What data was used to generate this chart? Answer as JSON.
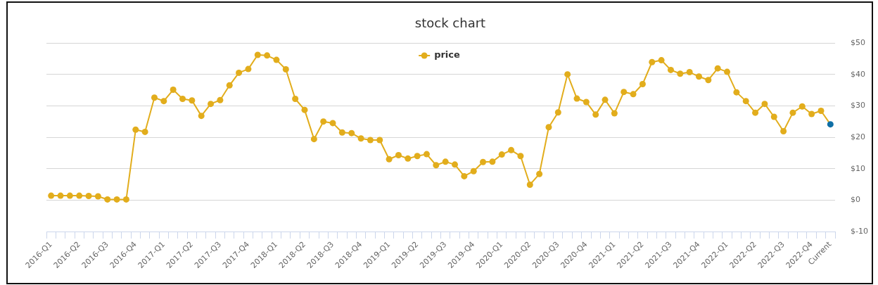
{
  "chart_data": {
    "type": "line",
    "title": "stock chart",
    "categories": [
      "2016-Q1",
      null,
      null,
      "2016-Q2",
      null,
      null,
      "2016-Q3",
      null,
      null,
      "2016-Q4",
      null,
      null,
      "2017-Q1",
      null,
      null,
      "2017-Q2",
      null,
      null,
      "2017-Q3",
      null,
      null,
      "2017-Q4",
      null,
      null,
      "2018-Q1",
      null,
      null,
      "2018-Q2",
      null,
      null,
      "2018-Q3",
      null,
      null,
      "2018-Q4",
      null,
      null,
      "2019-Q1",
      null,
      null,
      "2019-Q2",
      null,
      null,
      "2019-Q3",
      null,
      null,
      "2019-Q4",
      null,
      null,
      "2020-Q1",
      null,
      null,
      "2020-Q2",
      null,
      null,
      "2020-Q3",
      null,
      null,
      "2020-Q4",
      null,
      null,
      "2021-Q1",
      null,
      null,
      "2021-Q2",
      null,
      null,
      "2021-Q3",
      null,
      null,
      "2021-Q4",
      null,
      null,
      "2022-Q1",
      null,
      null,
      "2022-Q2",
      null,
      null,
      "2022-Q3",
      null,
      null,
      "2022-Q4",
      null,
      "Current"
    ],
    "series": [
      {
        "name": "price",
        "color": "#e2ad1c",
        "colors": [
          "#e2ad1c",
          "#e2ad1c",
          "#e2ad1c",
          "#e2ad1c",
          "#e2ad1c",
          "#e2ad1c",
          "#e2ad1c",
          "#e2ad1c",
          "#e2ad1c",
          "#e2ad1c",
          "#e2ad1c",
          "#e2ad1c",
          "#e2ad1c",
          "#e2ad1c",
          "#e2ad1c",
          "#e2ad1c",
          "#e2ad1c",
          "#e2ad1c",
          "#e2ad1c",
          "#e2ad1c",
          "#e2ad1c",
          "#e2ad1c",
          "#e2ad1c",
          "#e2ad1c",
          "#e2ad1c",
          "#e2ad1c",
          "#e2ad1c",
          "#e2ad1c",
          "#e2ad1c",
          "#e2ad1c",
          "#e2ad1c",
          "#e2ad1c",
          "#e2ad1c",
          "#e2ad1c",
          "#e2ad1c",
          "#e2ad1c",
          "#e2ad1c",
          "#e2ad1c",
          "#e2ad1c",
          "#e2ad1c",
          "#e2ad1c",
          "#e2ad1c",
          "#e2ad1c",
          "#e2ad1c",
          "#e2ad1c",
          "#e2ad1c",
          "#e2ad1c",
          "#e2ad1c",
          "#e2ad1c",
          "#e2ad1c",
          "#e2ad1c",
          "#e2ad1c",
          "#e2ad1c",
          "#e2ad1c",
          "#e2ad1c",
          "#e2ad1c",
          "#e2ad1c",
          "#e2ad1c",
          "#e2ad1c",
          "#e2ad1c",
          "#e2ad1c",
          "#e2ad1c",
          "#e2ad1c",
          "#e2ad1c",
          "#e2ad1c",
          "#e2ad1c",
          "#e2ad1c",
          "#e2ad1c",
          "#e2ad1c",
          "#e2ad1c",
          "#e2ad1c",
          "#e2ad1c",
          "#e2ad1c",
          "#e2ad1c",
          "#e2ad1c",
          "#e2ad1c",
          "#e2ad1c",
          "#e2ad1c",
          "#e2ad1c",
          "#e2ad1c",
          "#e2ad1c",
          "#e2ad1c",
          "#e2ad1c",
          "#0f6fa6"
        ],
        "values": [
          1.4,
          1.4,
          1.4,
          1.4,
          1.3,
          1.2,
          0.2,
          0.2,
          0.2,
          22.4,
          21.7,
          32.6,
          31.5,
          35.1,
          32.2,
          31.7,
          26.8,
          30.6,
          31.8,
          36.5,
          40.5,
          41.7,
          46.2,
          46.0,
          44.6,
          41.6,
          32.2,
          28.7,
          19.4,
          25.0,
          24.5,
          21.5,
          21.3,
          19.6,
          19.1,
          19.1,
          13.0,
          14.3,
          13.2,
          14.0,
          14.6,
          11.1,
          12.2,
          11.3,
          7.6,
          9.2,
          12.1,
          12.2,
          14.5,
          15.9,
          14.0,
          4.9,
          8.3,
          23.2,
          27.9,
          40.0,
          32.3,
          31.2,
          27.2,
          31.9,
          27.6,
          34.4,
          33.7,
          36.9,
          43.9,
          44.5,
          41.4,
          40.2,
          40.7,
          39.3,
          38.2,
          41.9,
          40.8,
          34.3,
          31.5,
          27.8,
          30.6,
          26.5,
          21.9,
          27.8,
          29.8,
          27.4,
          28.4,
          24.1
        ]
      }
    ],
    "ylim": [
      -10,
      50
    ],
    "yticks": [
      {
        "value": -10,
        "label": "$-10"
      },
      {
        "value": 0,
        "label": "$0"
      },
      {
        "value": 10,
        "label": "$10"
      },
      {
        "value": 20,
        "label": "$20"
      },
      {
        "value": 30,
        "label": "$30"
      },
      {
        "value": 40,
        "label": "$40"
      },
      {
        "value": 50,
        "label": "$50"
      }
    ],
    "grid": "y",
    "legend": "top",
    "marker": "circle",
    "line_style": "solid"
  }
}
